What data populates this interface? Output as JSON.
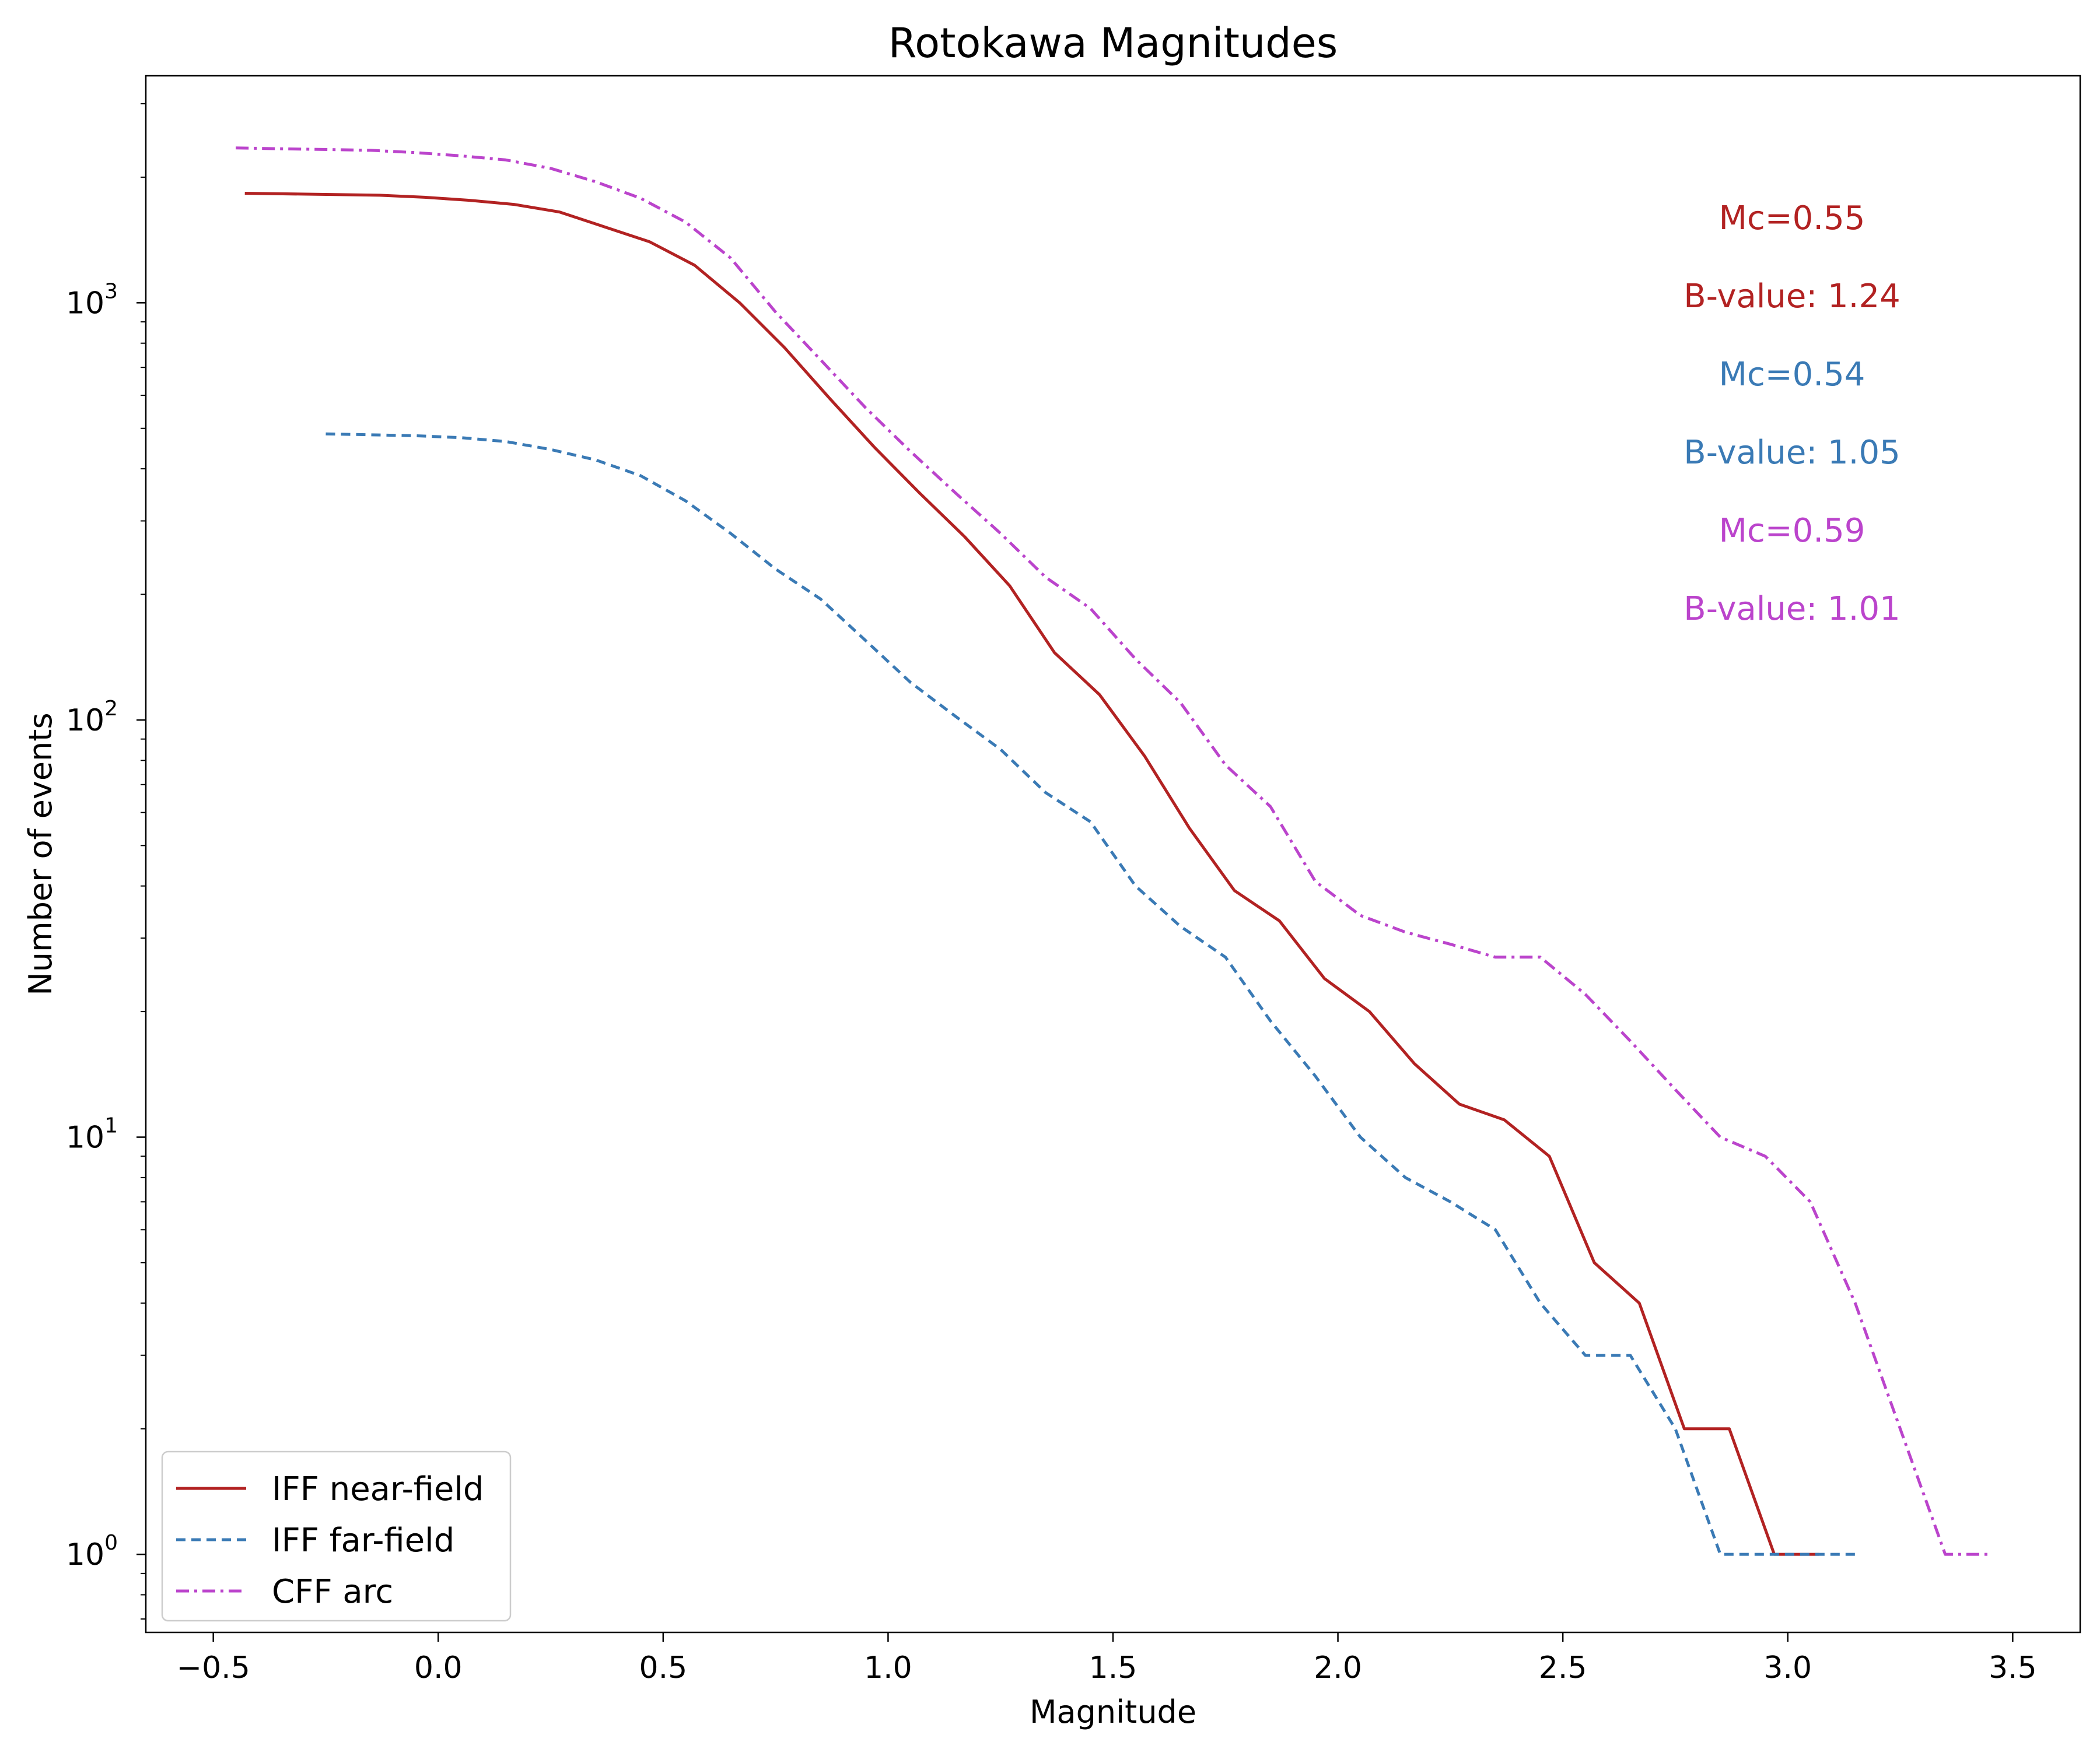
{
  "chart_data": {
    "type": "line",
    "title": "Rotokawa Magnitudes",
    "xlabel": "Magnitude",
    "ylabel": "Number of events",
    "yscale": "log",
    "xlim": [
      -0.65,
      3.65
    ],
    "ylim": [
      0.65,
      3500
    ],
    "grid": false,
    "legend_position": "lower-left",
    "x_ticks": [
      {
        "value": -0.5,
        "label": "−0.5"
      },
      {
        "value": 0.0,
        "label": "0.0"
      },
      {
        "value": 0.5,
        "label": "0.5"
      },
      {
        "value": 1.0,
        "label": "1.0"
      },
      {
        "value": 1.5,
        "label": "1.5"
      },
      {
        "value": 2.0,
        "label": "2.0"
      },
      {
        "value": 2.5,
        "label": "2.5"
      },
      {
        "value": 3.0,
        "label": "3.0"
      },
      {
        "value": 3.5,
        "label": "3.5"
      }
    ],
    "y_ticks": [
      {
        "value": 1,
        "base": "10",
        "exp": "0"
      },
      {
        "value": 10,
        "base": "10",
        "exp": "1"
      },
      {
        "value": 100,
        "base": "10",
        "exp": "2"
      },
      {
        "value": 1000,
        "base": "10",
        "exp": "3"
      }
    ],
    "series": [
      {
        "name": "IFF near-field",
        "color": "#b22222",
        "dash": "solid",
        "x": [
          -0.43,
          -0.13,
          -0.03,
          0.07,
          0.17,
          0.27,
          0.37,
          0.47,
          0.57,
          0.67,
          0.77,
          0.87,
          0.97,
          1.07,
          1.17,
          1.27,
          1.37,
          1.47,
          1.57,
          1.67,
          1.77,
          1.87,
          1.97,
          2.07,
          2.17,
          2.27,
          2.37,
          2.47,
          2.57,
          2.67,
          2.77,
          2.87,
          2.97,
          3.07
        ],
        "values": [
          1830,
          1810,
          1790,
          1760,
          1720,
          1650,
          1520,
          1400,
          1230,
          1000,
          780,
          590,
          450,
          350,
          275,
          210,
          145,
          115,
          82,
          55,
          39,
          33,
          24,
          20,
          15,
          12,
          11,
          9,
          5,
          4,
          2,
          2,
          1,
          1
        ]
      },
      {
        "name": "IFF far-field",
        "color": "#3a7ab5",
        "dash": "dashed",
        "x": [
          -0.25,
          -0.05,
          0.05,
          0.15,
          0.25,
          0.35,
          0.45,
          0.55,
          0.65,
          0.75,
          0.85,
          0.95,
          1.05,
          1.15,
          1.25,
          1.35,
          1.45,
          1.55,
          1.65,
          1.75,
          1.85,
          1.95,
          2.05,
          2.15,
          2.25,
          2.35,
          2.45,
          2.55,
          2.65,
          2.75,
          2.85,
          2.95,
          3.05,
          3.15
        ],
        "values": [
          485,
          480,
          475,
          465,
          445,
          420,
          385,
          335,
          280,
          230,
          195,
          155,
          123,
          102,
          85,
          67,
          57,
          40,
          32,
          27,
          19,
          14,
          10,
          8,
          7,
          6,
          4,
          3,
          3,
          2,
          1,
          1,
          1,
          1
        ]
      },
      {
        "name": "CFF arc",
        "color": "#bb44cc",
        "dash": "dashdot",
        "x": [
          -0.45,
          -0.15,
          -0.05,
          0.05,
          0.15,
          0.25,
          0.35,
          0.45,
          0.55,
          0.65,
          0.75,
          0.85,
          0.95,
          1.05,
          1.15,
          1.25,
          1.35,
          1.45,
          1.55,
          1.65,
          1.75,
          1.85,
          1.95,
          2.05,
          2.15,
          2.25,
          2.35,
          2.45,
          2.55,
          2.65,
          2.75,
          2.85,
          2.95,
          3.05,
          3.15,
          3.25,
          3.35,
          3.45
        ],
        "values": [
          2350,
          2320,
          2290,
          2250,
          2200,
          2100,
          1950,
          1780,
          1560,
          1280,
          950,
          730,
          560,
          440,
          350,
          280,
          220,
          185,
          140,
          110,
          78,
          62,
          41,
          34,
          31,
          29,
          27,
          27,
          22,
          17,
          13,
          10,
          9,
          7,
          4,
          2,
          1,
          1
        ]
      }
    ],
    "annotations": [
      {
        "text": "Mc=0.55",
        "color": "#b22222"
      },
      {
        "text": "B-value: 1.24",
        "color": "#b22222"
      },
      {
        "text": "Mc=0.54",
        "color": "#3a7ab5"
      },
      {
        "text": "B-value: 1.05",
        "color": "#3a7ab5"
      },
      {
        "text": "Mc=0.59",
        "color": "#bb44cc"
      },
      {
        "text": "B-value: 1.01",
        "color": "#bb44cc"
      }
    ]
  }
}
